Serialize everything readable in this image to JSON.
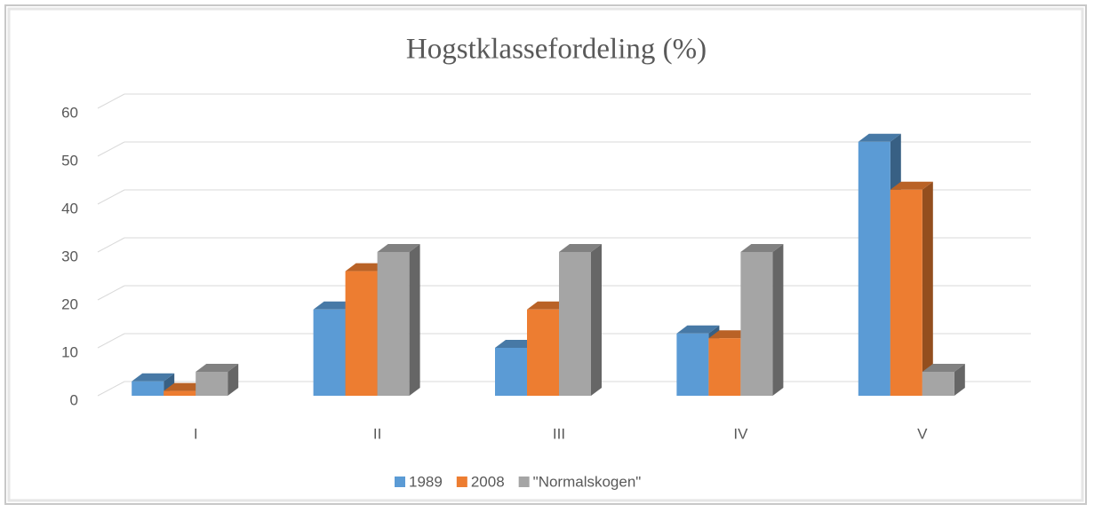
{
  "chart_data": {
    "type": "bar3d",
    "title": "Hogstklassefordeling  (%)",
    "categories": [
      "I",
      "II",
      "III",
      "IV",
      "V"
    ],
    "series": [
      {
        "name": "1989",
        "color": "#5b9bd5",
        "values": [
          3,
          18,
          10,
          13,
          53
        ]
      },
      {
        "name": "2008",
        "color": "#ed7d31",
        "values": [
          1,
          26,
          18,
          12,
          43
        ]
      },
      {
        "name": "\"Normalskogen\"",
        "color": "#a5a5a5",
        "values": [
          5,
          30,
          30,
          30,
          5
        ]
      }
    ],
    "ylim": [
      0,
      60
    ],
    "yticks": [
      0,
      10,
      20,
      30,
      40,
      50,
      60
    ],
    "grid": true,
    "legend": "bottom"
  }
}
